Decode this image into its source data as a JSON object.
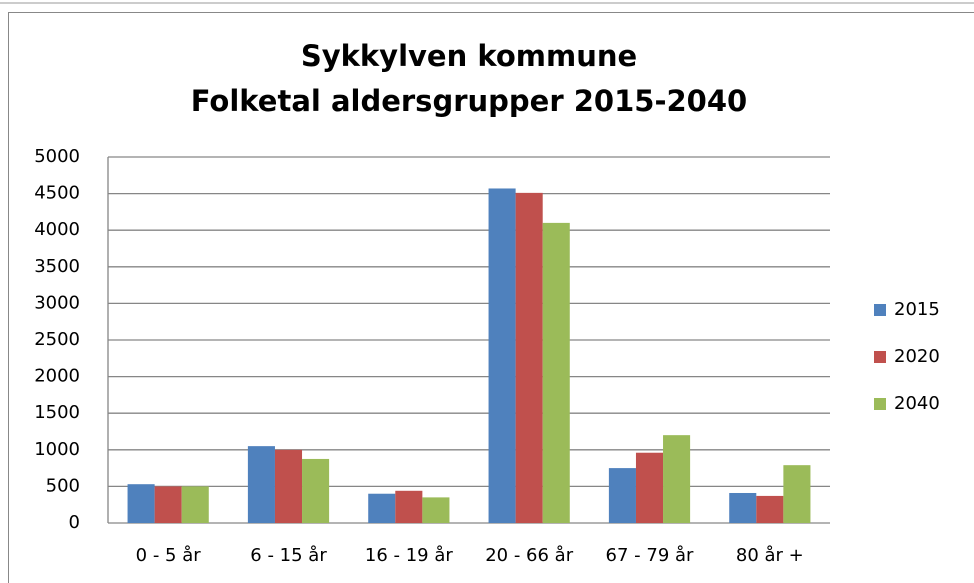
{
  "chart_data": {
    "type": "bar",
    "title": "Sykkylven kommune",
    "subtitle": "Folketal aldersgrupper 2015-2040",
    "categories": [
      "0 - 5 år",
      "6 - 15 år",
      "16 - 19 år",
      "20 - 66 år",
      "67 - 79 år",
      "80 år +"
    ],
    "series": [
      {
        "name": "2015",
        "color": "#4f81bd",
        "values": [
          530,
          1050,
          400,
          4570,
          750,
          410
        ]
      },
      {
        "name": "2020",
        "color": "#c0504d",
        "values": [
          500,
          1000,
          440,
          4510,
          960,
          370
        ]
      },
      {
        "name": "2040",
        "color": "#9bbb59",
        "values": [
          500,
          875,
          350,
          4100,
          1200,
          790
        ]
      }
    ],
    "ylim": [
      0,
      5000
    ],
    "yticks": [
      0,
      500,
      1000,
      1500,
      2000,
      2500,
      3000,
      3500,
      4000,
      4500,
      5000
    ],
    "grid": true,
    "legend": "right"
  }
}
